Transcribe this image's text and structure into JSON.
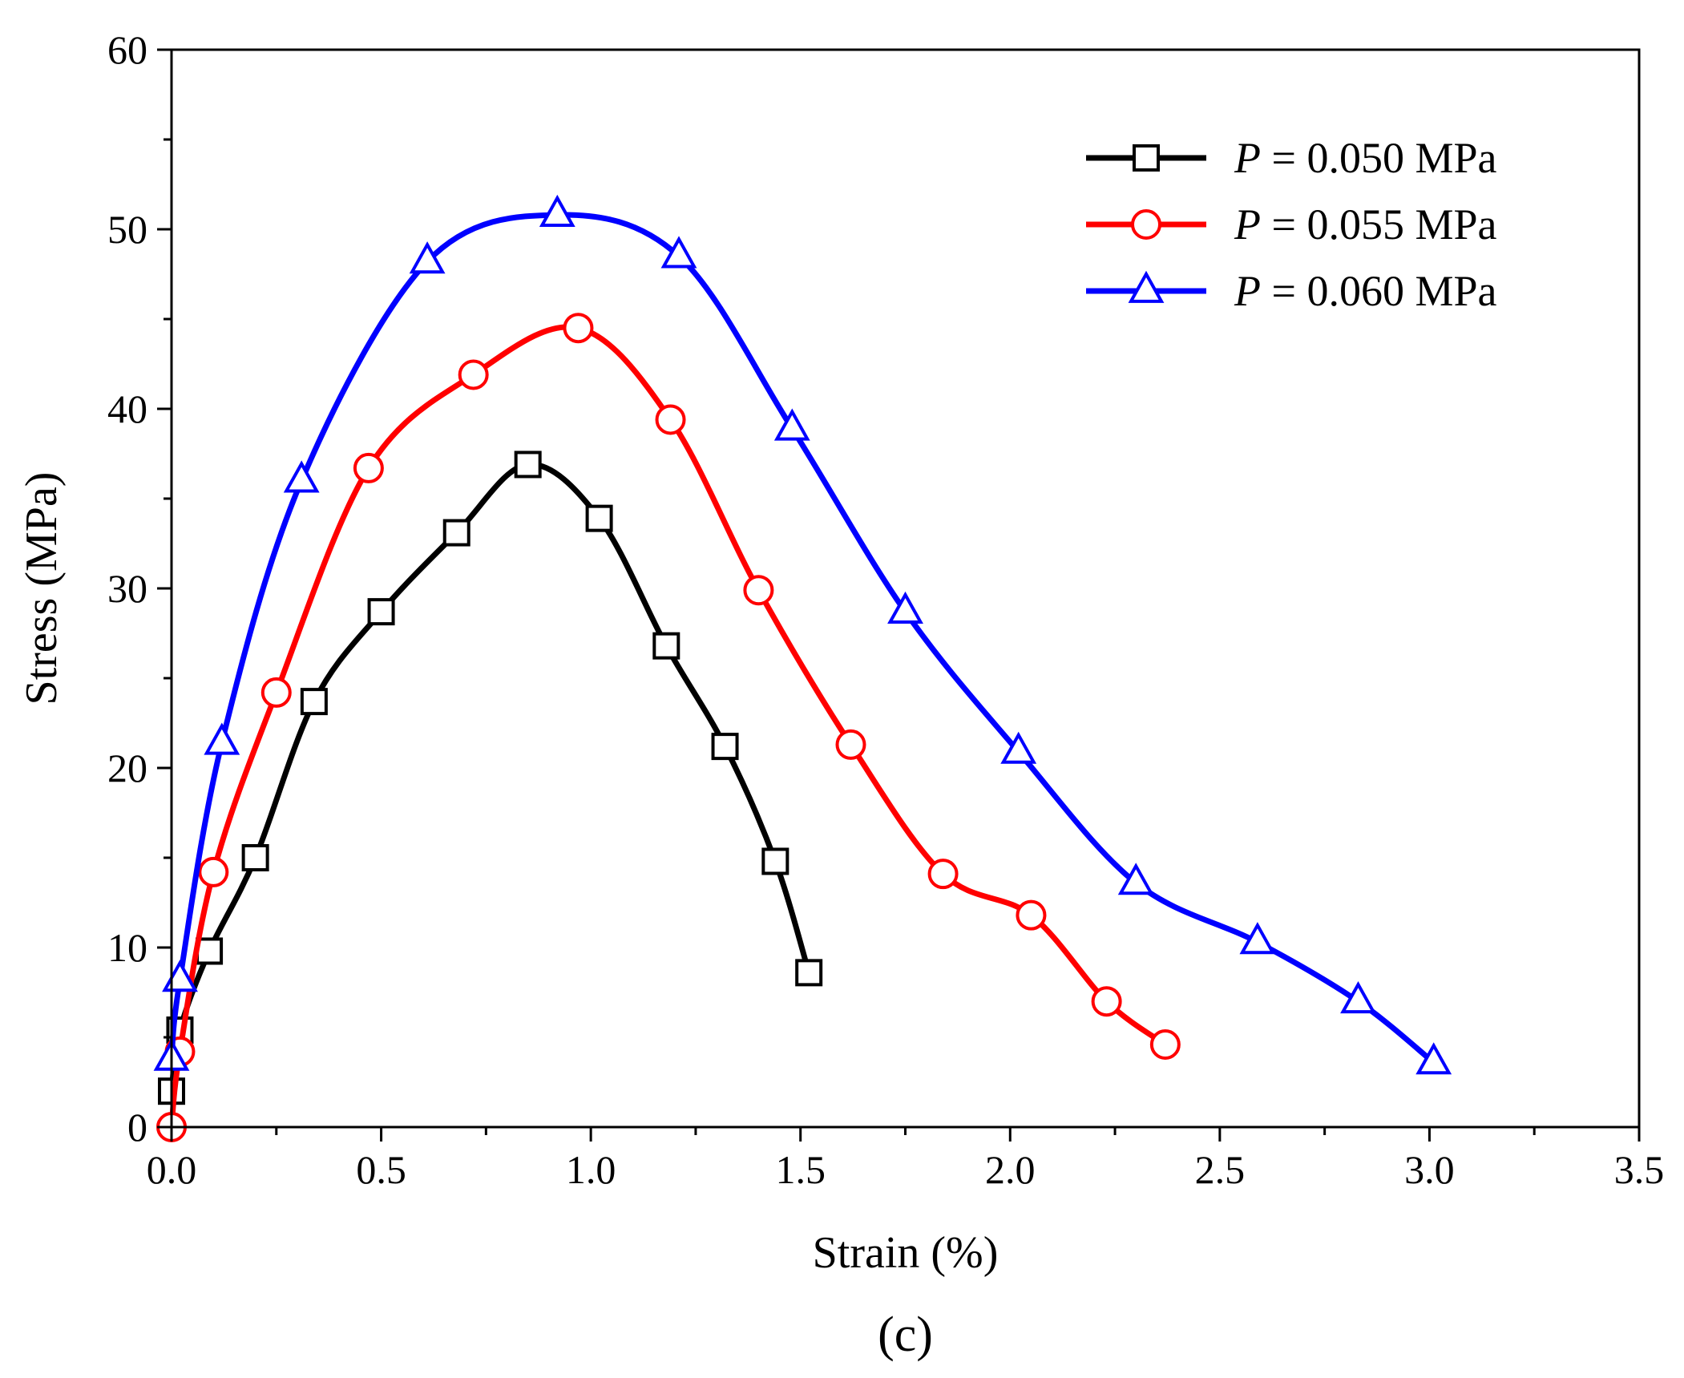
{
  "chart_data": {
    "type": "line",
    "title": "",
    "panel_label": "(c)",
    "xlabel": "Strain (%)",
    "ylabel": "Stress (MPa)",
    "xlim": [
      0,
      3.5
    ],
    "ylim": [
      0,
      60
    ],
    "xticks": [
      0,
      0.5,
      1.0,
      1.5,
      2.0,
      2.5,
      3.0,
      3.5
    ],
    "xtick_labels": [
      "0.0",
      "0.5",
      "1.0",
      "1.5",
      "2.0",
      "2.5",
      "3.0",
      "3.5"
    ],
    "yticks": [
      0,
      10,
      20,
      30,
      40,
      50,
      60
    ],
    "ytick_labels": [
      "0",
      "10",
      "20",
      "30",
      "40",
      "50",
      "60"
    ],
    "grid": false,
    "legend_position": "top-right",
    "series": [
      {
        "name": "P = 0.050 MPa",
        "legend_var": "P",
        "legend_rest": " = 0.050 MPa",
        "color": "#000000",
        "marker": "square",
        "x": [
          0.0,
          0.02,
          0.09,
          0.2,
          0.34,
          0.5,
          0.68,
          0.85,
          1.02,
          1.18,
          1.32,
          1.44,
          1.52
        ],
        "y": [
          2,
          5.4,
          9.8,
          15,
          23.7,
          28.7,
          33.1,
          36.9,
          33.9,
          26.8,
          21.2,
          14.8,
          8.6
        ]
      },
      {
        "name": "P = 0.055 MPa",
        "legend_var": "P",
        "legend_rest": " = 0.055 MPa",
        "color": "#ff0000",
        "marker": "circle",
        "x": [
          0.0,
          0.02,
          0.1,
          0.25,
          0.47,
          0.72,
          0.97,
          1.19,
          1.4,
          1.62,
          1.84,
          2.05,
          2.23,
          2.37
        ],
        "y": [
          0,
          4.2,
          14.2,
          24.2,
          36.7,
          41.9,
          44.5,
          39.4,
          29.9,
          21.3,
          14.1,
          11.8,
          7.0,
          4.6
        ]
      },
      {
        "name": "P = 0.060 MPa",
        "legend_var": "P",
        "legend_rest": " = 0.060 MPa",
        "color": "#0000ff",
        "marker": "triangle",
        "x": [
          0.0,
          0.02,
          0.12,
          0.31,
          0.61,
          0.92,
          1.21,
          1.48,
          1.75,
          2.02,
          2.3,
          2.59,
          2.83,
          3.01
        ],
        "y": [
          3.8,
          8.2,
          21.4,
          36.0,
          48.2,
          50.8,
          48.5,
          38.9,
          28.7,
          20.9,
          13.6,
          10.3,
          7.0,
          3.6
        ]
      }
    ]
  }
}
